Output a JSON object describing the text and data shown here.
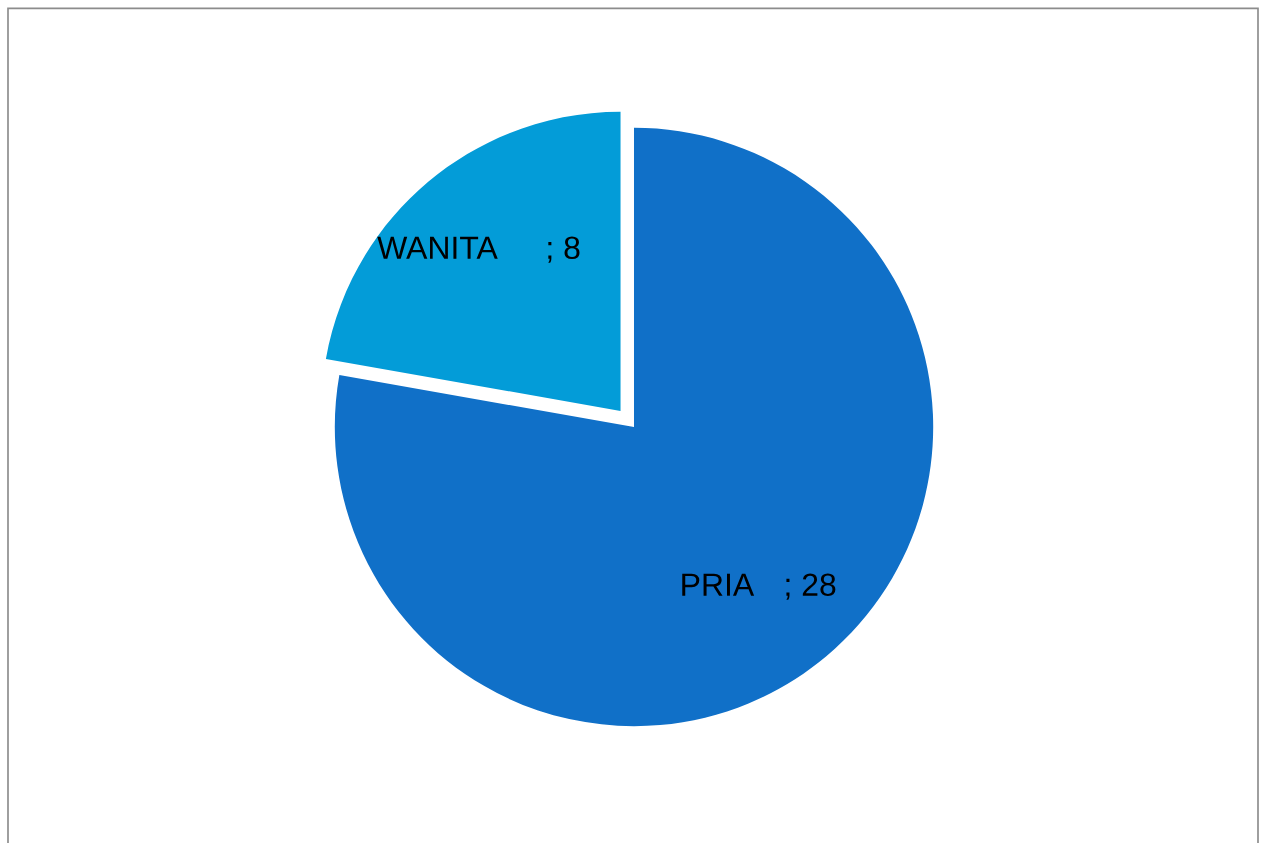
{
  "chart_data": {
    "type": "pie",
    "categories": [
      "PRIA",
      "WANITA"
    ],
    "values": [
      28,
      8
    ],
    "colors": [
      "#1070c8",
      "#039cd8"
    ],
    "value_labels": [
      "; 28",
      "; 8"
    ]
  }
}
